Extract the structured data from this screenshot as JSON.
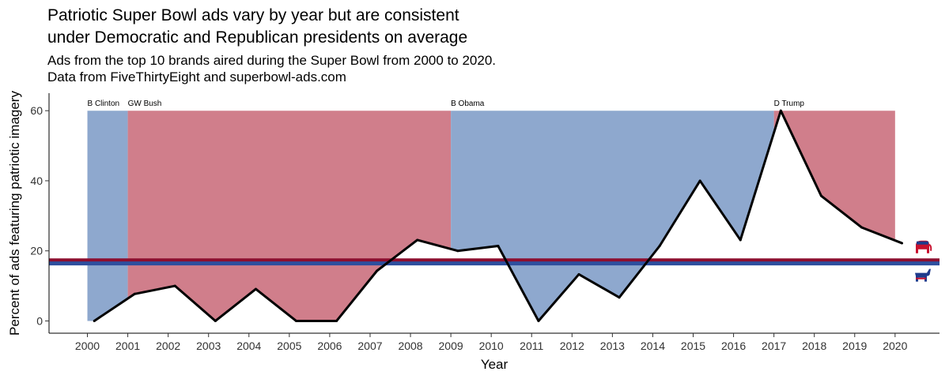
{
  "title": "Patriotic Super Bowl ads vary by year but are consistent\nunder Democratic and Republican presidents on average",
  "subtitle": "Ads from the top 10 brands aired during the Super Bowl from 2000 to 2020.\nData from FiveThirtyEight and superbowl-ads.com",
  "colors": {
    "democrat_fill": "#8EA8CE",
    "republican_fill": "#D07E8B",
    "democrat_line": "#2E4F9E",
    "republican_line": "#8E0E2E",
    "series_line": "#000000"
  },
  "icons": {
    "republican": "republican-elephant-icon",
    "democrat": "democrat-donkey-icon"
  },
  "chart_data": {
    "type": "line",
    "xlabel": "Year",
    "ylabel": "Percent of ads featuring patriotic imagery",
    "xlim": [
      1999.05,
      2021.1
    ],
    "ylim": [
      -3.5,
      65
    ],
    "x_ticks": [
      2000,
      2001,
      2002,
      2003,
      2004,
      2005,
      2006,
      2007,
      2008,
      2009,
      2010,
      2011,
      2012,
      2013,
      2014,
      2015,
      2016,
      2017,
      2018,
      2019,
      2020
    ],
    "y_ticks": [
      0,
      20,
      40,
      60
    ],
    "grid": false,
    "series": [
      {
        "x": [
          2000.17,
          2001.17,
          2002.17,
          2003.17,
          2004.17,
          2005.17,
          2006.17,
          2007.17,
          2008.17,
          2009.17,
          2010.17,
          2011.17,
          2012.17,
          2013.17,
          2014.17,
          2015.17,
          2016.17,
          2017.17,
          2018.17,
          2019.17,
          2020.17
        ],
        "y": [
          0,
          7.7,
          10,
          0,
          9.1,
          0,
          0,
          14.3,
          23.1,
          20,
          21.4,
          0,
          13.3,
          6.7,
          21.4,
          40,
          23.1,
          60,
          35.7,
          26.7,
          22.2
        ]
      }
    ],
    "presidencies": [
      {
        "label": "B Clinton",
        "party": "Democrat",
        "start": 2000,
        "end": 2001
      },
      {
        "label": "GW Bush",
        "party": "Republican",
        "start": 2001,
        "end": 2009
      },
      {
        "label": "B Obama",
        "party": "Democrat",
        "start": 2009,
        "end": 2017
      },
      {
        "label": "D Trump",
        "party": "Republican",
        "start": 2017,
        "end": 2020
      }
    ],
    "party_averages": [
      {
        "party": "Republican",
        "value": 17.3
      },
      {
        "party": "Democrat",
        "value": 16.4
      }
    ]
  }
}
